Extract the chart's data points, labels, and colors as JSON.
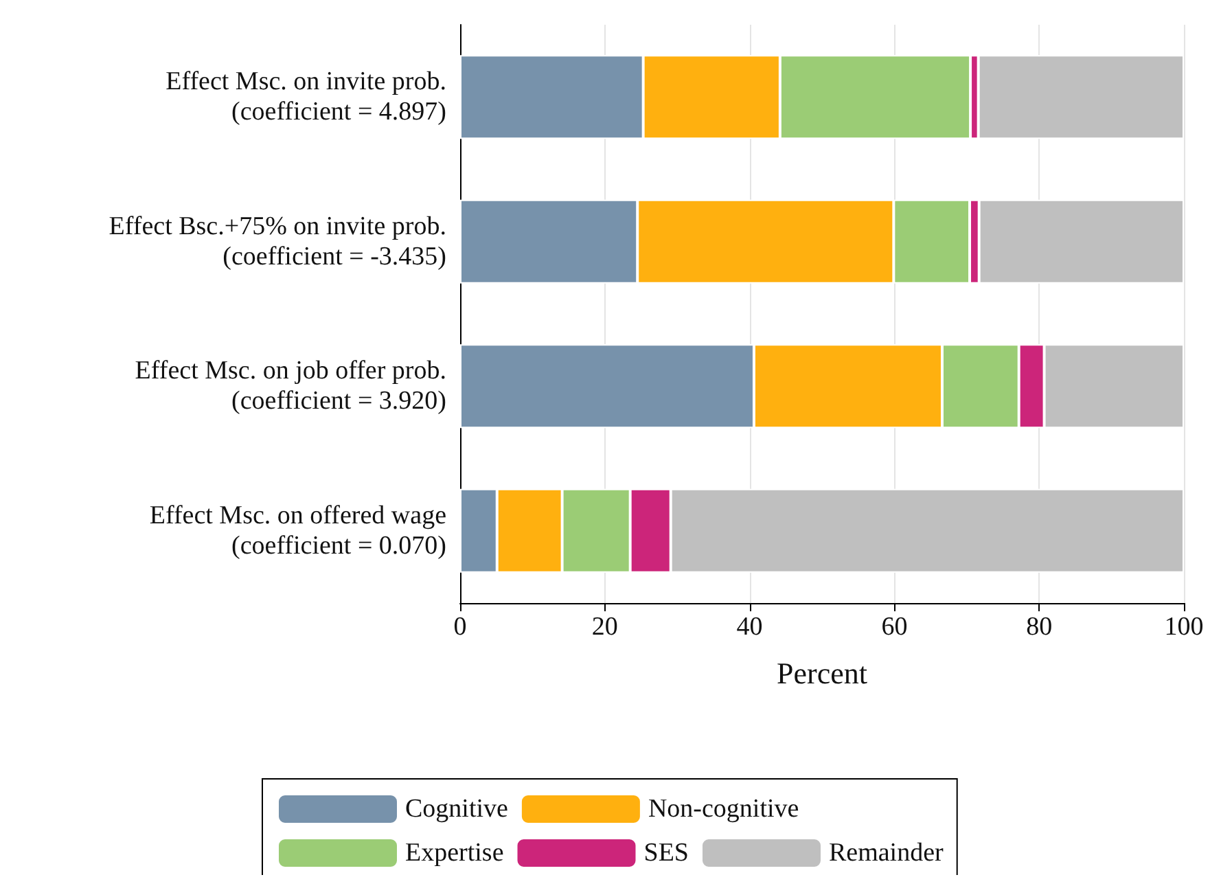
{
  "chart_data": {
    "type": "bar",
    "orientation": "horizontal",
    "stacked": true,
    "xlabel": "Percent",
    "categories": [
      "Effect Msc. on invite prob.\n(coefficient = 4.897)",
      "Effect Bsc.+75% on invite prob.\n(coefficient = -3.435)",
      "Effect Msc. on job offer prob.\n(coefficient = 3.920)",
      "Effect Msc. on offered wage\n(coefficient = 0.070)"
    ],
    "series": [
      {
        "name": "Cognitive",
        "color": "#7792ab",
        "values": [
          25.3,
          24.5,
          40.6,
          5.1
        ]
      },
      {
        "name": "Non-cognitive",
        "color": "#ffb00f",
        "values": [
          18.9,
          35.4,
          26.0,
          9.0
        ]
      },
      {
        "name": "Expertise",
        "color": "#9bcc75",
        "values": [
          26.3,
          10.5,
          10.6,
          9.4
        ]
      },
      {
        "name": "SES",
        "color": "#cc257a",
        "values": [
          1.1,
          1.3,
          3.5,
          5.6
        ]
      },
      {
        "name": "Remainder",
        "color": "#bfbfbf",
        "values": [
          28.4,
          28.3,
          19.3,
          70.9
        ]
      }
    ],
    "xlim": [
      0,
      100
    ],
    "xticks": [
      0,
      20,
      40,
      60,
      80,
      100
    ],
    "grid": "x",
    "legend": "bottom"
  }
}
